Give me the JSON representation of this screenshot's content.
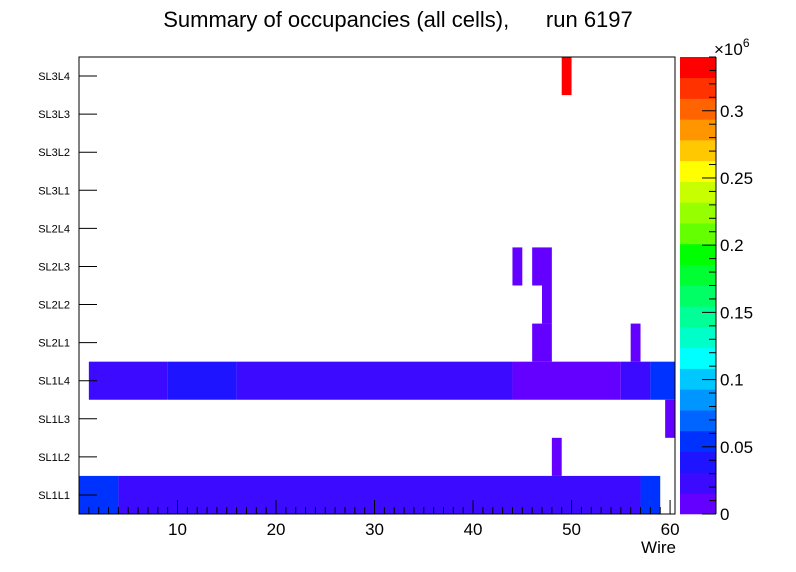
{
  "chart_data": {
    "type": "heatmap",
    "title": "Summary of occupancies (all cells),      run 6197",
    "xlabel": "Wire",
    "ylabel": "",
    "xlim": [
      0,
      60.5
    ],
    "x_ticks": [
      10,
      20,
      30,
      40,
      50,
      60
    ],
    "rows": [
      "SL1L1",
      "SL1L2",
      "SL1L3",
      "SL1L4",
      "SL2L1",
      "SL2L2",
      "SL2L3",
      "SL2L4",
      "SL3L1",
      "SL3L2",
      "SL3L3",
      "SL3L4"
    ],
    "z_range": [
      0,
      340000
    ],
    "z_exponent_label": "×10",
    "z_exponent_power": "6",
    "z_ticks": [
      {
        "value": 0,
        "label": "0"
      },
      {
        "value": 50000,
        "label": "0.05"
      },
      {
        "value": 100000,
        "label": "0.1"
      },
      {
        "value": 150000,
        "label": "0.15"
      },
      {
        "value": 200000,
        "label": "0.2"
      },
      {
        "value": 250000,
        "label": "0.25"
      },
      {
        "value": 300000,
        "label": "0.3"
      }
    ],
    "palette": [
      "#6400ff",
      "#3c0aff",
      "#1e14ff",
      "#0032ff",
      "#0064ff",
      "#0096ff",
      "#00c8ff",
      "#00ffff",
      "#00ffc8",
      "#00ff96",
      "#00ff64",
      "#00ff32",
      "#00ff00",
      "#64ff00",
      "#96ff00",
      "#c8ff00",
      "#ffff00",
      "#ffc800",
      "#ff9600",
      "#ff6400",
      "#ff3200",
      "#ff0000"
    ],
    "cells": [
      {
        "row": "SL1L1",
        "x_from": 0,
        "x_to": 4,
        "value": 55000
      },
      {
        "row": "SL1L1",
        "x_from": 4,
        "x_to": 57,
        "value": 22000
      },
      {
        "row": "SL1L1",
        "x_from": 57,
        "x_to": 59,
        "value": 55000
      },
      {
        "row": "SL1L2",
        "x_from": 48,
        "x_to": 49,
        "value": 15000
      },
      {
        "row": "SL1L3",
        "x_from": 59.5,
        "x_to": 60.5,
        "value": 15000
      },
      {
        "row": "SL1L4",
        "x_from": 1,
        "x_to": 9,
        "value": 22000
      },
      {
        "row": "SL1L4",
        "x_from": 9,
        "x_to": 16,
        "value": 40000
      },
      {
        "row": "SL1L4",
        "x_from": 16,
        "x_to": 44,
        "value": 22000
      },
      {
        "row": "SL1L4",
        "x_from": 44,
        "x_to": 55,
        "value": 8000
      },
      {
        "row": "SL1L4",
        "x_from": 55,
        "x_to": 58,
        "value": 22000
      },
      {
        "row": "SL1L4",
        "x_from": 58,
        "x_to": 60.5,
        "value": 55000
      },
      {
        "row": "SL2L1",
        "x_from": 46,
        "x_to": 48,
        "value": 15000
      },
      {
        "row": "SL2L1",
        "x_from": 56,
        "x_to": 57,
        "value": 15000
      },
      {
        "row": "SL2L2",
        "x_from": 47,
        "x_to": 48,
        "value": 15000
      },
      {
        "row": "SL2L3",
        "x_from": 44,
        "x_to": 45,
        "value": 15000
      },
      {
        "row": "SL2L3",
        "x_from": 46,
        "x_to": 48,
        "value": 15000
      },
      {
        "row": "SL3L4",
        "x_from": 49,
        "x_to": 50,
        "value": 335000
      }
    ]
  }
}
